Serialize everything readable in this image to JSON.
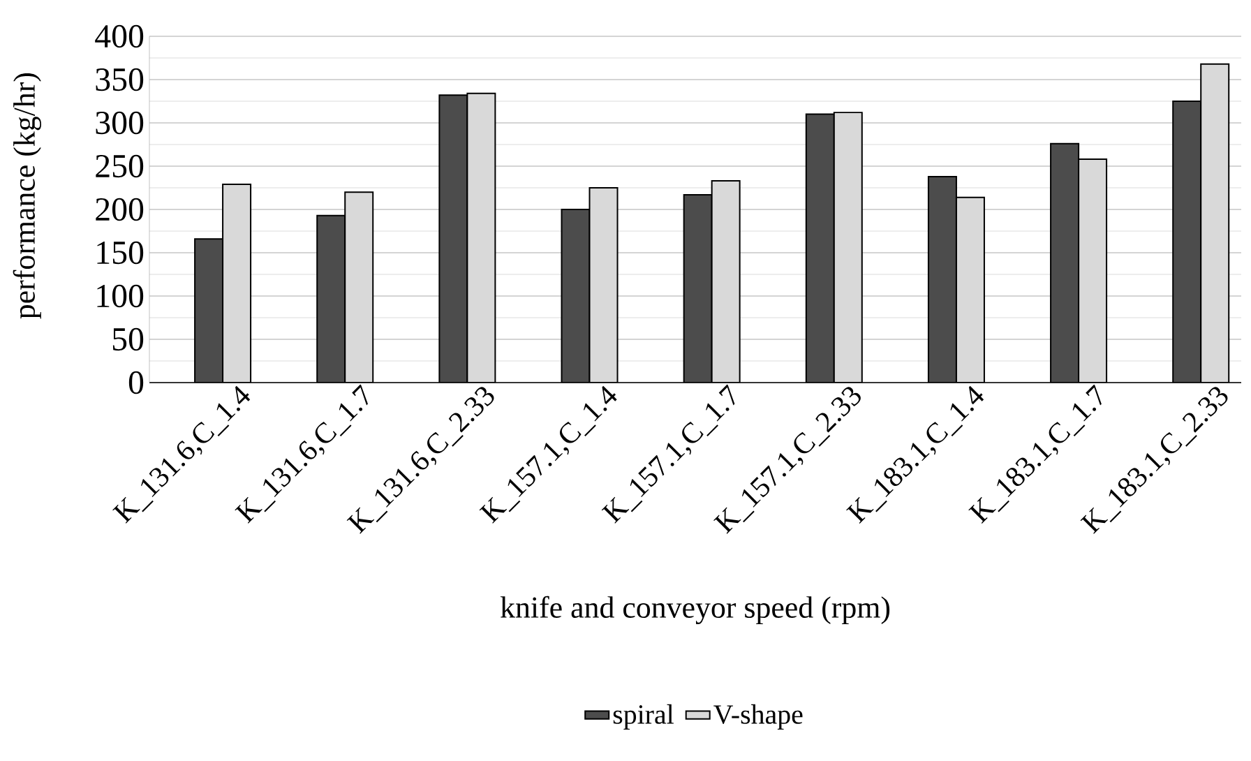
{
  "chart_data": {
    "type": "bar",
    "xlabel": "knife and conveyor  speed (rpm)",
    "ylabel": "performance (kg/hr)",
    "categories": [
      "K_131.6,C_1.4",
      "K_131.6,C_1.7",
      "K_131.6,C_2.33",
      "K_157.1,C_1.4",
      "K_157.1,C_1.7",
      "K_157.1,C_2.33",
      "K_183.1,C_1.4",
      "K_183.1,C_1.7",
      "K_183.1,C_2.33"
    ],
    "series": [
      {
        "name": "spiral",
        "color": "#4c4c4c",
        "values": [
          166,
          193,
          332,
          200,
          217,
          310,
          238,
          276,
          325
        ]
      },
      {
        "name": "V-shape",
        "color": "#d9d9d9",
        "values": [
          229,
          220,
          334,
          225,
          233,
          312,
          214,
          258,
          368
        ]
      }
    ],
    "ylim": [
      0,
      400
    ],
    "yticks": [
      0,
      50,
      100,
      150,
      200,
      250,
      300,
      350,
      400
    ],
    "grid": "y",
    "legend": "bottom"
  }
}
